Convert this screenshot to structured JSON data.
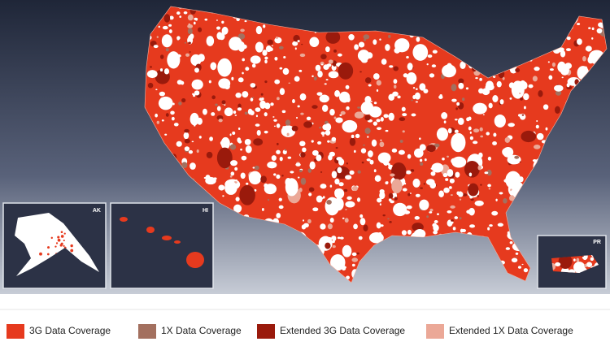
{
  "insets": [
    {
      "label": "AK"
    },
    {
      "label": "HI"
    },
    {
      "label": "PR"
    }
  ],
  "legend": [
    {
      "label": "3G Data Coverage",
      "color": "#e63a1e"
    },
    {
      "label": "1X Data Coverage",
      "color": "#a3705f"
    },
    {
      "label": "Extended 3G Data Coverage",
      "color": "#9a1a0c"
    },
    {
      "label": "Extended 1X Data Coverage",
      "color": "#eba897"
    }
  ]
}
